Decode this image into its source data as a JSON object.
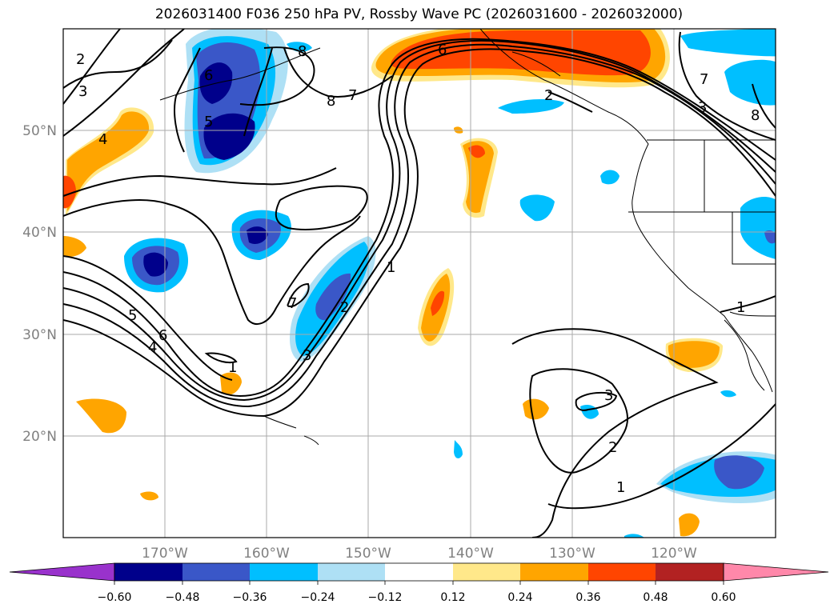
{
  "title": "2026031400 F036 250 hPa PV, Rossby Wave PC (2026031600 - 2026032000)",
  "map": {
    "projection": "cylindrical",
    "lon_range": [
      180,
      110
    ],
    "lat_range": [
      10,
      60
    ],
    "lon_ticks": [
      "170°W",
      "160°W",
      "150°W",
      "140°W",
      "130°W",
      "120°W"
    ],
    "lat_ticks": [
      "50°N",
      "40°N",
      "30°N",
      "20°N"
    ]
  },
  "colors": {
    "neg_extend": "#9932cc",
    "n060": "#00008b",
    "n048": "#3a57c8",
    "n036": "#00bfff",
    "n024": "#aee0f5",
    "neutral": "#ffffff",
    "p012": "#ffe88a",
    "p024": "#ffa500",
    "p036": "#ff4500",
    "p048": "#b22222",
    "pos_extend": "#ff88aa"
  },
  "colorbar": {
    "labels": [
      "−0.60",
      "−0.48",
      "−0.36",
      "−0.24",
      "−0.12",
      "0.12",
      "0.24",
      "0.36",
      "0.48",
      "0.60"
    ]
  },
  "contour_labels": [
    "2",
    "3",
    "4",
    "5",
    "6",
    "7",
    "8",
    "1",
    "2",
    "3",
    "4",
    "5",
    "6",
    "7",
    "8",
    "1",
    "2",
    "1",
    "2",
    "3",
    "1",
    "6",
    "7",
    "3",
    "8"
  ]
}
